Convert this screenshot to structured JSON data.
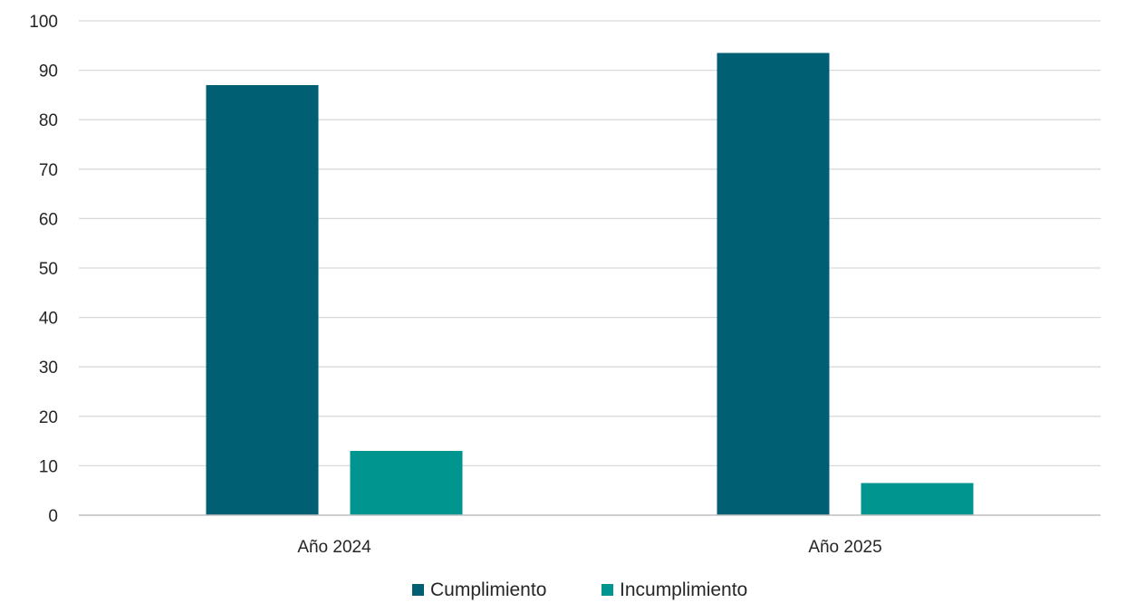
{
  "chart_data": {
    "type": "bar",
    "title": "",
    "xlabel": "",
    "ylabel": "",
    "categories": [
      "Año 2024",
      "Año 2025"
    ],
    "series": [
      {
        "name": "Cumplimiento",
        "values": [
          87,
          93.5
        ],
        "color": "#005f73"
      },
      {
        "name": "Incumplimiento",
        "values": [
          13,
          6.5
        ],
        "color": "#00968f"
      }
    ],
    "ylim": [
      0,
      100
    ],
    "yticks": [
      0,
      10,
      20,
      30,
      40,
      50,
      60,
      70,
      80,
      90,
      100
    ],
    "grid": true,
    "legend_position": "bottom-center",
    "colors": {
      "grid": "#d9d9d9",
      "axis": "#bfbfbf",
      "text": "#262626"
    }
  }
}
